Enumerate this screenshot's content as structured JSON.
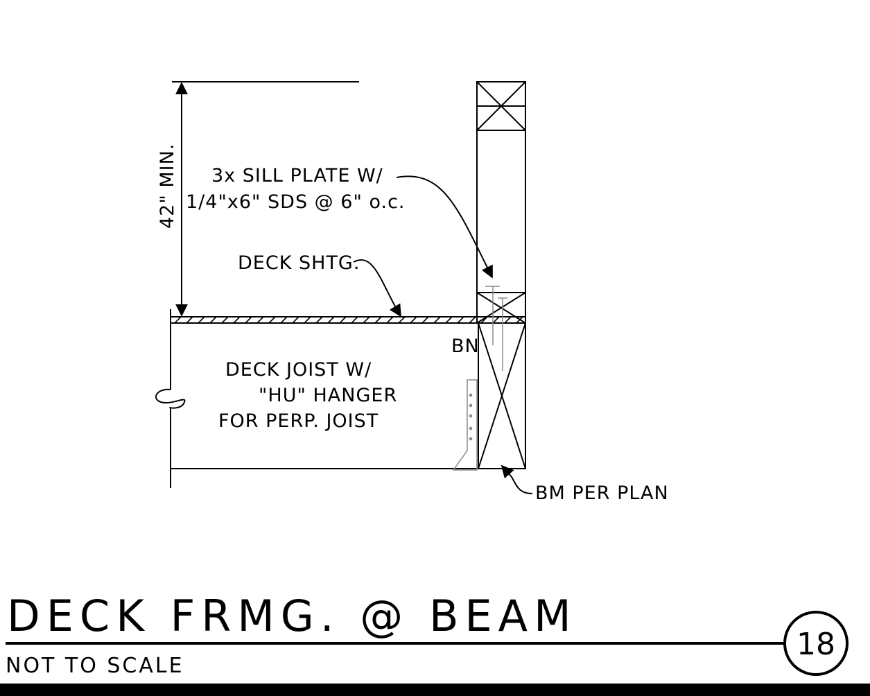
{
  "drawing": {
    "dimension_label": "42\" MIN.",
    "sill_plate_line1": "3x SILL PLATE W/",
    "sill_plate_line2": "1/4\"x6\" SDS @ 6\" o.c.",
    "deck_sheathing": "DECK SHTG.",
    "boundary_nailing": "BN",
    "joist_line1": "DECK JOIST W/",
    "joist_line2": "\"HU\" HANGER",
    "joist_line3": "FOR PERP. JOIST",
    "beam_label": "BM PER PLAN"
  },
  "title_block": {
    "title": "DECK FRMG. @ BEAM",
    "scale": "NOT TO SCALE",
    "detail_number": "18"
  }
}
